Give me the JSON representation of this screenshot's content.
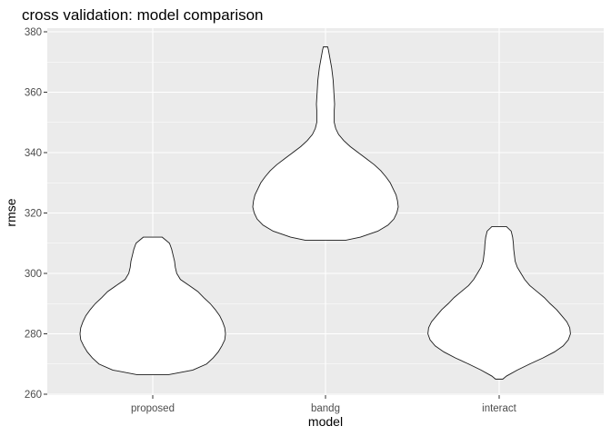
{
  "chart_data": {
    "type": "violin",
    "title": "cross validation: model comparison",
    "xlabel": "model",
    "ylabel": "rmse",
    "ylim": [
      260,
      380
    ],
    "yticks": [
      "260",
      "280",
      "300",
      "320",
      "340",
      "360",
      "380"
    ],
    "yticks_values": [
      260,
      280,
      300,
      320,
      340,
      360,
      380
    ],
    "categories": [
      "proposed",
      "bandg",
      "interact"
    ],
    "grid": true,
    "panel_background": "#ebebeb",
    "grid_color": "#ffffff",
    "fill_color": "#ffffff",
    "outline_color": "#1a1a1a",
    "violins": [
      {
        "category": "proposed",
        "min": 266.5,
        "max": 312,
        "density": [
          [
            266.5,
            0.22
          ],
          [
            268,
            0.55
          ],
          [
            270,
            0.74
          ],
          [
            272,
            0.83
          ],
          [
            274,
            0.9
          ],
          [
            276,
            0.95
          ],
          [
            278,
            0.99
          ],
          [
            280,
            1.0
          ],
          [
            282,
            0.99
          ],
          [
            284,
            0.96
          ],
          [
            286,
            0.92
          ],
          [
            288,
            0.86
          ],
          [
            290,
            0.79
          ],
          [
            292,
            0.7
          ],
          [
            294,
            0.62
          ],
          [
            296,
            0.5
          ],
          [
            298,
            0.38
          ],
          [
            300,
            0.33
          ],
          [
            302,
            0.31
          ],
          [
            304,
            0.3
          ],
          [
            306,
            0.28
          ],
          [
            308,
            0.26
          ],
          [
            310,
            0.23
          ],
          [
            312,
            0.13
          ]
        ]
      },
      {
        "category": "bandg",
        "min": 311,
        "max": 375,
        "density": [
          [
            311,
            0.28
          ],
          [
            312,
            0.48
          ],
          [
            314,
            0.72
          ],
          [
            316,
            0.86
          ],
          [
            318,
            0.94
          ],
          [
            320,
            0.98
          ],
          [
            322,
            1.0
          ],
          [
            324,
            0.99
          ],
          [
            326,
            0.97
          ],
          [
            328,
            0.93
          ],
          [
            330,
            0.89
          ],
          [
            332,
            0.83
          ],
          [
            334,
            0.76
          ],
          [
            336,
            0.67
          ],
          [
            338,
            0.56
          ],
          [
            340,
            0.45
          ],
          [
            342,
            0.34
          ],
          [
            344,
            0.25
          ],
          [
            346,
            0.18
          ],
          [
            348,
            0.14
          ],
          [
            350,
            0.12
          ],
          [
            352,
            0.12
          ],
          [
            354,
            0.12
          ],
          [
            356,
            0.125
          ],
          [
            358,
            0.12
          ],
          [
            360,
            0.115
          ],
          [
            362,
            0.11
          ],
          [
            364,
            0.105
          ],
          [
            366,
            0.095
          ],
          [
            368,
            0.085
          ],
          [
            370,
            0.07
          ],
          [
            372,
            0.055
          ],
          [
            374,
            0.04
          ],
          [
            375,
            0.03
          ]
        ]
      },
      {
        "category": "interact",
        "min": 265,
        "max": 315.5,
        "density": [
          [
            265,
            0.05
          ],
          [
            266,
            0.1
          ],
          [
            268,
            0.25
          ],
          [
            270,
            0.42
          ],
          [
            272,
            0.6
          ],
          [
            274,
            0.76
          ],
          [
            276,
            0.88
          ],
          [
            278,
            0.95
          ],
          [
            280,
            0.98
          ],
          [
            282,
            0.97
          ],
          [
            284,
            0.93
          ],
          [
            286,
            0.86
          ],
          [
            288,
            0.79
          ],
          [
            290,
            0.7
          ],
          [
            292,
            0.62
          ],
          [
            294,
            0.52
          ],
          [
            296,
            0.42
          ],
          [
            298,
            0.35
          ],
          [
            300,
            0.3
          ],
          [
            302,
            0.25
          ],
          [
            304,
            0.22
          ],
          [
            306,
            0.21
          ],
          [
            308,
            0.2
          ],
          [
            310,
            0.195
          ],
          [
            312,
            0.185
          ],
          [
            314,
            0.165
          ],
          [
            315.5,
            0.1
          ]
        ]
      }
    ]
  }
}
